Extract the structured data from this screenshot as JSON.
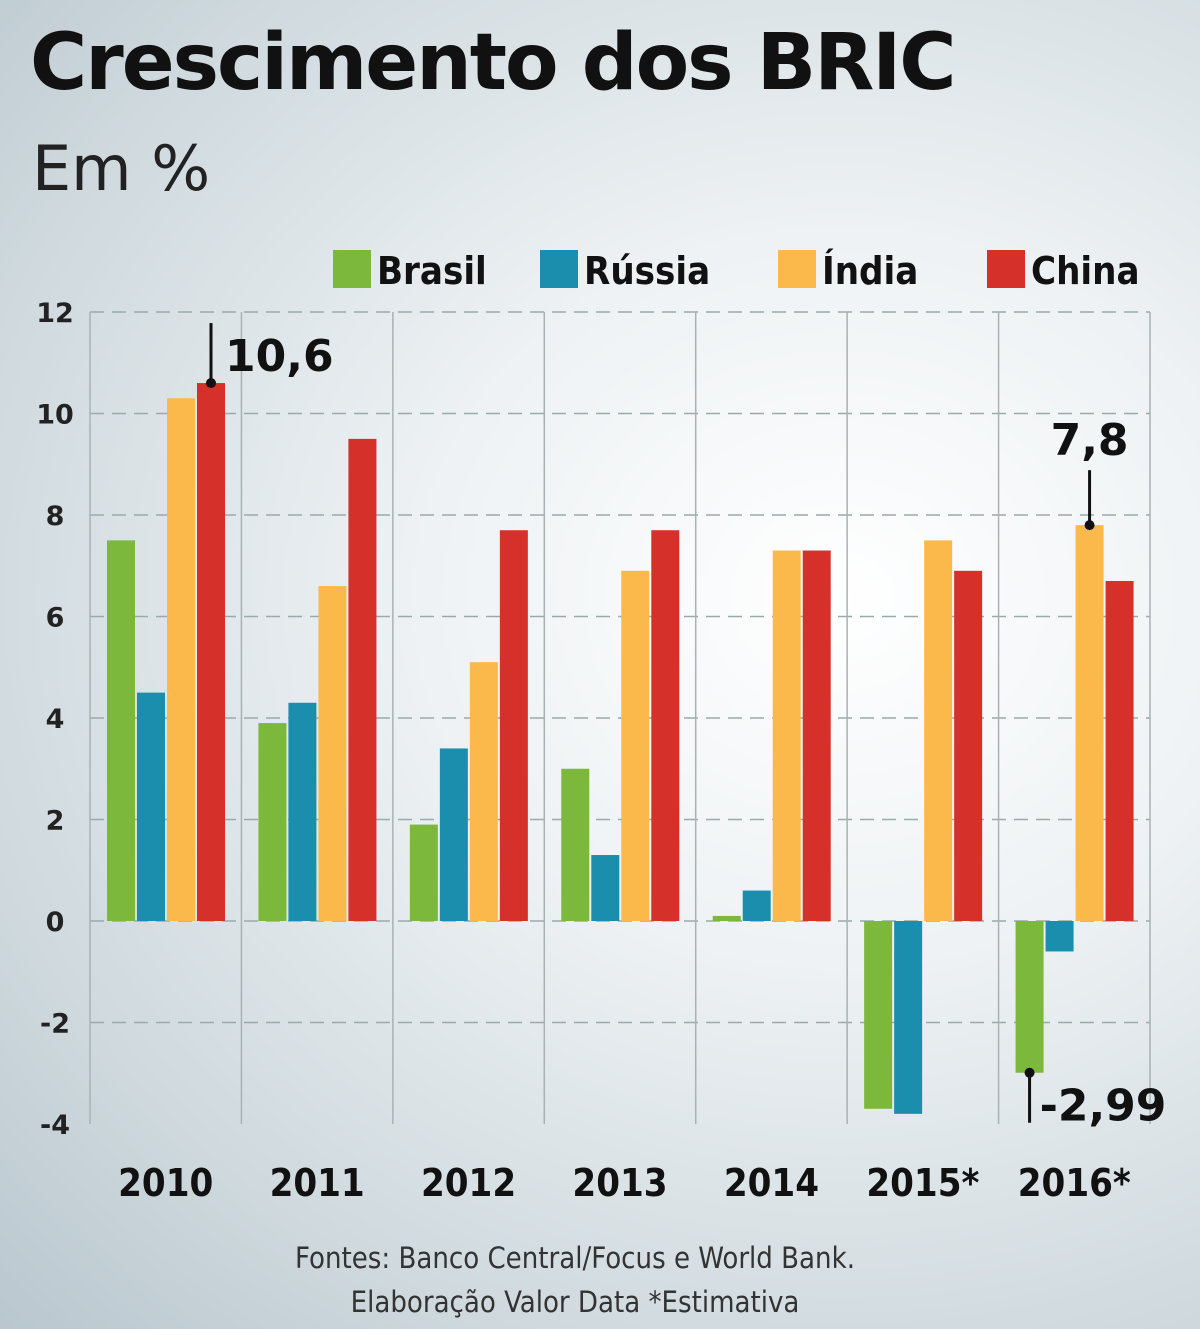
{
  "chart_data": {
    "type": "bar",
    "title": "Crescimento dos BRIC",
    "subtitle": "Em %",
    "categories": [
      "2010",
      "2011",
      "2012",
      "2013",
      "2014",
      "2015*",
      "2016*"
    ],
    "series": [
      {
        "name": "Brasil",
        "color": "#7cb83b",
        "values": [
          7.5,
          3.9,
          1.9,
          3.0,
          0.1,
          -3.7,
          -2.99
        ]
      },
      {
        "name": "Rússia",
        "color": "#1b8eae",
        "values": [
          4.5,
          4.3,
          3.4,
          1.3,
          0.6,
          -3.8,
          -0.6
        ]
      },
      {
        "name": "Índia",
        "color": "#fbb94c",
        "values": [
          10.3,
          6.6,
          5.1,
          6.9,
          7.3,
          7.5,
          7.8
        ]
      },
      {
        "name": "China",
        "color": "#d5302a",
        "values": [
          10.6,
          9.5,
          7.7,
          7.7,
          7.3,
          6.9,
          6.7
        ]
      }
    ],
    "ylim": [
      -4,
      12
    ],
    "yticks": [
      12,
      10,
      8,
      6,
      4,
      2,
      0,
      -2,
      -4
    ],
    "grid": true,
    "legend": "top-right",
    "annotations": [
      {
        "category": "2010",
        "series": "China",
        "label": "10,6"
      },
      {
        "category": "2016*",
        "series": "Índia",
        "label": "7,8"
      },
      {
        "category": "2016*",
        "series": "Brasil",
        "label": "-2,99"
      }
    ],
    "source": "Fontes: Banco Central/Focus e World Bank.",
    "note": "Elaboração Valor Data  *Estimativa"
  }
}
